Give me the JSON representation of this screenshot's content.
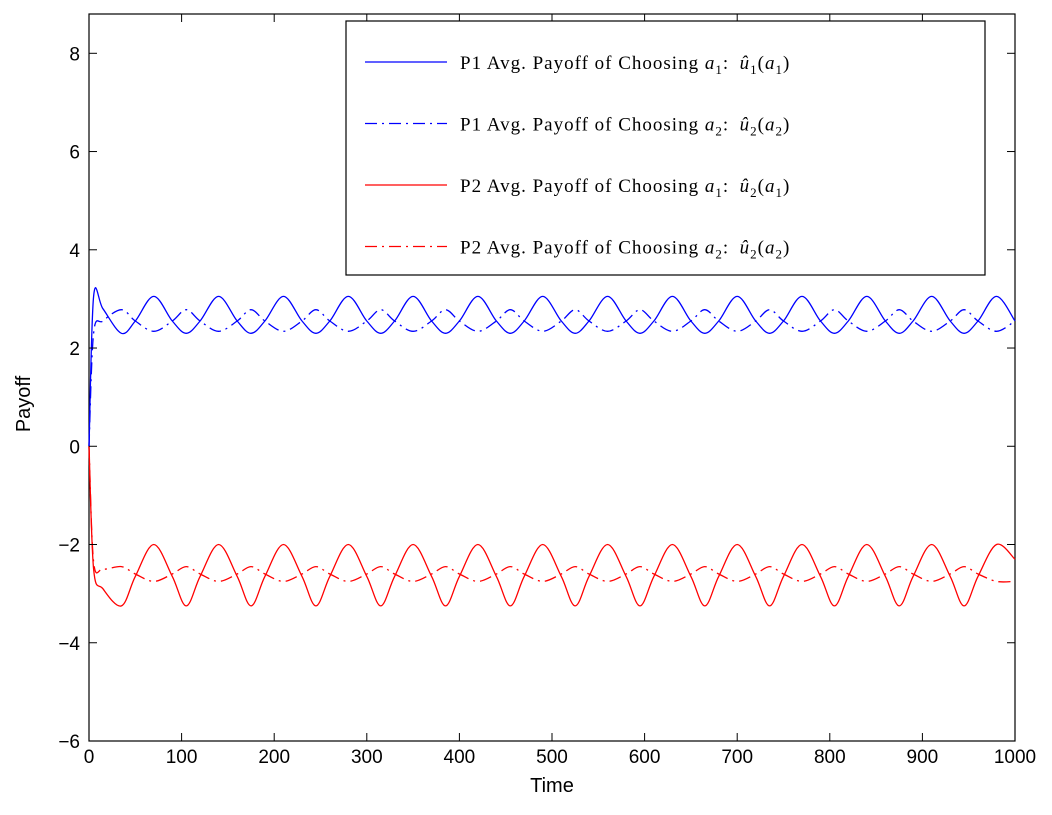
{
  "chart_data": {
    "type": "line",
    "title": "",
    "xlabel": "Time",
    "ylabel": "Payoff",
    "xlim": [
      0,
      1000
    ],
    "ylim": [
      -6,
      8.8
    ],
    "xticks": [
      0,
      100,
      200,
      300,
      400,
      500,
      600,
      700,
      800,
      900,
      1000
    ],
    "yticks": [
      -6,
      -4,
      -2,
      0,
      2,
      4,
      6,
      8
    ],
    "xtick_labels": [
      "0",
      "100",
      "200",
      "300",
      "400",
      "500",
      "600",
      "700",
      "800",
      "900",
      "1000"
    ],
    "ytick_labels": [
      "−6",
      "−4",
      "−2",
      "0",
      "2",
      "4",
      "6",
      "8"
    ],
    "grid": false,
    "legend_position": "top-right",
    "x_samples": [
      0,
      5,
      15,
      35,
      50,
      70,
      90,
      105,
      120,
      140,
      160,
      175,
      190,
      210,
      230,
      245,
      260,
      280,
      300,
      315,
      330,
      350,
      370,
      385,
      400,
      420,
      440,
      455,
      470,
      490,
      510,
      525,
      540,
      560,
      580,
      595,
      610,
      630,
      650,
      665,
      680,
      700,
      720,
      735,
      750,
      770,
      790,
      805,
      820,
      840,
      860,
      875,
      890,
      910,
      930,
      945,
      960,
      980,
      1000
    ],
    "series": [
      {
        "name": "P1 Avg. Payoff of Choosing a1: û1(a1)",
        "color": "#0000ff",
        "dash": "solid",
        "values": [
          0,
          3.05,
          2.8,
          2.3,
          2.55,
          3.05,
          2.55,
          2.3,
          2.55,
          3.05,
          2.55,
          2.3,
          2.55,
          3.05,
          2.55,
          2.3,
          2.55,
          3.05,
          2.55,
          2.3,
          2.55,
          3.05,
          2.55,
          2.3,
          2.55,
          3.05,
          2.55,
          2.3,
          2.55,
          3.05,
          2.55,
          2.3,
          2.55,
          3.05,
          2.55,
          2.3,
          2.55,
          3.05,
          2.55,
          2.3,
          2.55,
          3.05,
          2.55,
          2.3,
          2.55,
          3.05,
          2.55,
          2.3,
          2.55,
          3.05,
          2.55,
          2.3,
          2.55,
          3.05,
          2.55,
          2.3,
          2.55,
          3.05,
          2.55
        ]
      },
      {
        "name": "P1 Avg. Payoff of Choosing a2: û2(a2)",
        "color": "#0000ff",
        "dash": "dashdot",
        "values": [
          0,
          2.3,
          2.55,
          2.78,
          2.55,
          2.34,
          2.55,
          2.78,
          2.55,
          2.34,
          2.55,
          2.78,
          2.55,
          2.34,
          2.55,
          2.78,
          2.55,
          2.34,
          2.55,
          2.78,
          2.55,
          2.34,
          2.55,
          2.78,
          2.55,
          2.34,
          2.55,
          2.78,
          2.55,
          2.34,
          2.55,
          2.78,
          2.55,
          2.34,
          2.55,
          2.78,
          2.55,
          2.34,
          2.55,
          2.78,
          2.55,
          2.34,
          2.55,
          2.78,
          2.55,
          2.34,
          2.55,
          2.78,
          2.55,
          2.34,
          2.55,
          2.78,
          2.55,
          2.34,
          2.55,
          2.78,
          2.55,
          2.34,
          2.55
        ]
      },
      {
        "name": "P2 Avg. Payoff of Choosing a1: û2(a1)",
        "color": "#ff0000",
        "dash": "solid",
        "values": [
          0,
          -2.5,
          -2.9,
          -3.25,
          -2.65,
          -2.0,
          -2.65,
          -3.25,
          -2.65,
          -2.0,
          -2.65,
          -3.25,
          -2.65,
          -2.0,
          -2.65,
          -3.25,
          -2.65,
          -2.0,
          -2.65,
          -3.25,
          -2.65,
          -2.0,
          -2.65,
          -3.25,
          -2.65,
          -2.0,
          -2.65,
          -3.25,
          -2.65,
          -2.0,
          -2.65,
          -3.25,
          -2.65,
          -2.0,
          -2.65,
          -3.25,
          -2.65,
          -2.0,
          -2.65,
          -3.25,
          -2.65,
          -2.0,
          -2.65,
          -3.25,
          -2.65,
          -2.0,
          -2.65,
          -3.25,
          -2.65,
          -2.0,
          -2.65,
          -3.25,
          -2.65,
          -2.0,
          -2.65,
          -3.25,
          -2.65,
          -2.0,
          -2.3
        ]
      },
      {
        "name": "P2 Avg. Payoff of Choosing a2: û2(a2)",
        "color": "#ff0000",
        "dash": "dashdot",
        "values": [
          0,
          -2.35,
          -2.5,
          -2.45,
          -2.6,
          -2.75,
          -2.6,
          -2.45,
          -2.6,
          -2.75,
          -2.6,
          -2.45,
          -2.6,
          -2.75,
          -2.6,
          -2.45,
          -2.6,
          -2.75,
          -2.6,
          -2.45,
          -2.6,
          -2.75,
          -2.6,
          -2.45,
          -2.6,
          -2.75,
          -2.6,
          -2.45,
          -2.6,
          -2.75,
          -2.6,
          -2.45,
          -2.6,
          -2.75,
          -2.6,
          -2.45,
          -2.6,
          -2.75,
          -2.6,
          -2.45,
          -2.6,
          -2.75,
          -2.6,
          -2.45,
          -2.6,
          -2.75,
          -2.6,
          -2.45,
          -2.6,
          -2.75,
          -2.6,
          -2.45,
          -2.6,
          -2.75,
          -2.6,
          -2.45,
          -2.6,
          -2.75,
          -2.75
        ]
      }
    ],
    "legend": [
      {
        "prefix": "P1 Avg. Payoff of Choosing ",
        "math_a_sub": "1",
        "math_u_sub": "1",
        "math_arg_sub": "1"
      },
      {
        "prefix": "P1 Avg. Payoff of Choosing ",
        "math_a_sub": "2",
        "math_u_sub": "2",
        "math_arg_sub": "2"
      },
      {
        "prefix": "P2 Avg. Payoff of Choosing ",
        "math_a_sub": "1",
        "math_u_sub": "2",
        "math_arg_sub": "1"
      },
      {
        "prefix": "P2 Avg. Payoff of Choosing ",
        "math_a_sub": "2",
        "math_u_sub": "2",
        "math_arg_sub": "2"
      }
    ]
  }
}
